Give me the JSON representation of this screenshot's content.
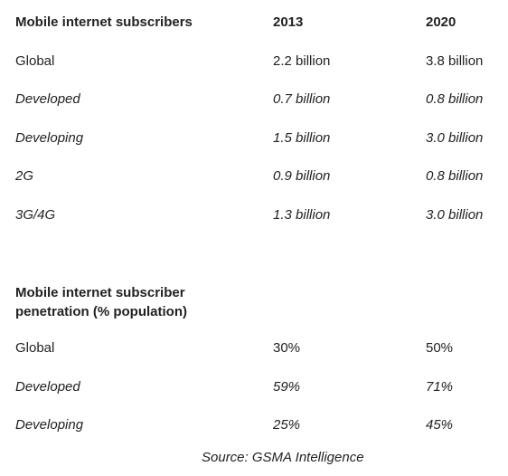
{
  "table1": {
    "header": [
      "Mobile internet subscribers",
      "2013",
      "2020"
    ],
    "rows": [
      [
        "Global",
        "2.2 billion",
        "3.8 billion"
      ],
      [
        "Developed",
        "0.7 billion",
        "0.8 billion"
      ],
      [
        "Developing",
        "1.5 billion",
        "3.0 billion"
      ],
      [
        "2G",
        "0.9 billion",
        "0.8 billion"
      ],
      [
        "3G/4G",
        "1.3 billion",
        "3.0 billion"
      ]
    ]
  },
  "table2": {
    "header": [
      "Mobile internet subscriber penetration (% population)"
    ],
    "rows": [
      [
        "Global",
        "30%",
        "50%"
      ],
      [
        "Developed",
        "59%",
        "71%"
      ],
      [
        "Developing",
        "25%",
        "45%"
      ]
    ]
  },
  "source": "Source: GSMA Intelligence"
}
